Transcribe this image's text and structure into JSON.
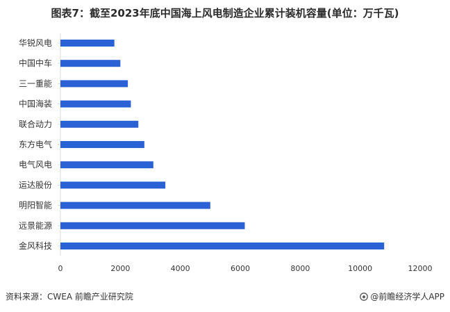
{
  "chart_data": {
    "type": "bar",
    "orientation": "horizontal",
    "title": "图表7：截至2023年底中国海上风电制造企业累计装机容量(单位：万千瓦)",
    "categories": [
      "华锐风电",
      "中国中车",
      "三一重能",
      "中国海装",
      "联合动力",
      "东方电气",
      "电气风电",
      "运达股份",
      "明阳智能",
      "远景能源",
      "金风科技"
    ],
    "values": [
      1800,
      2000,
      2250,
      2350,
      2600,
      2800,
      3100,
      3500,
      5000,
      6150,
      10800
    ],
    "xlim": [
      0,
      12000
    ],
    "xticks": [
      0,
      2000,
      4000,
      6000,
      8000,
      10000,
      12000
    ],
    "xticklabels": [
      "0",
      "2000",
      "4000",
      "6000",
      "8000",
      "10000",
      "12000"
    ],
    "xlabel": "",
    "ylabel": "",
    "grid": false,
    "bar_color": "#2a62d6"
  },
  "footer": {
    "source": "资料来源：CWEA 前瞻产业研究院",
    "brand": "@前瞻经济学人APP"
  }
}
